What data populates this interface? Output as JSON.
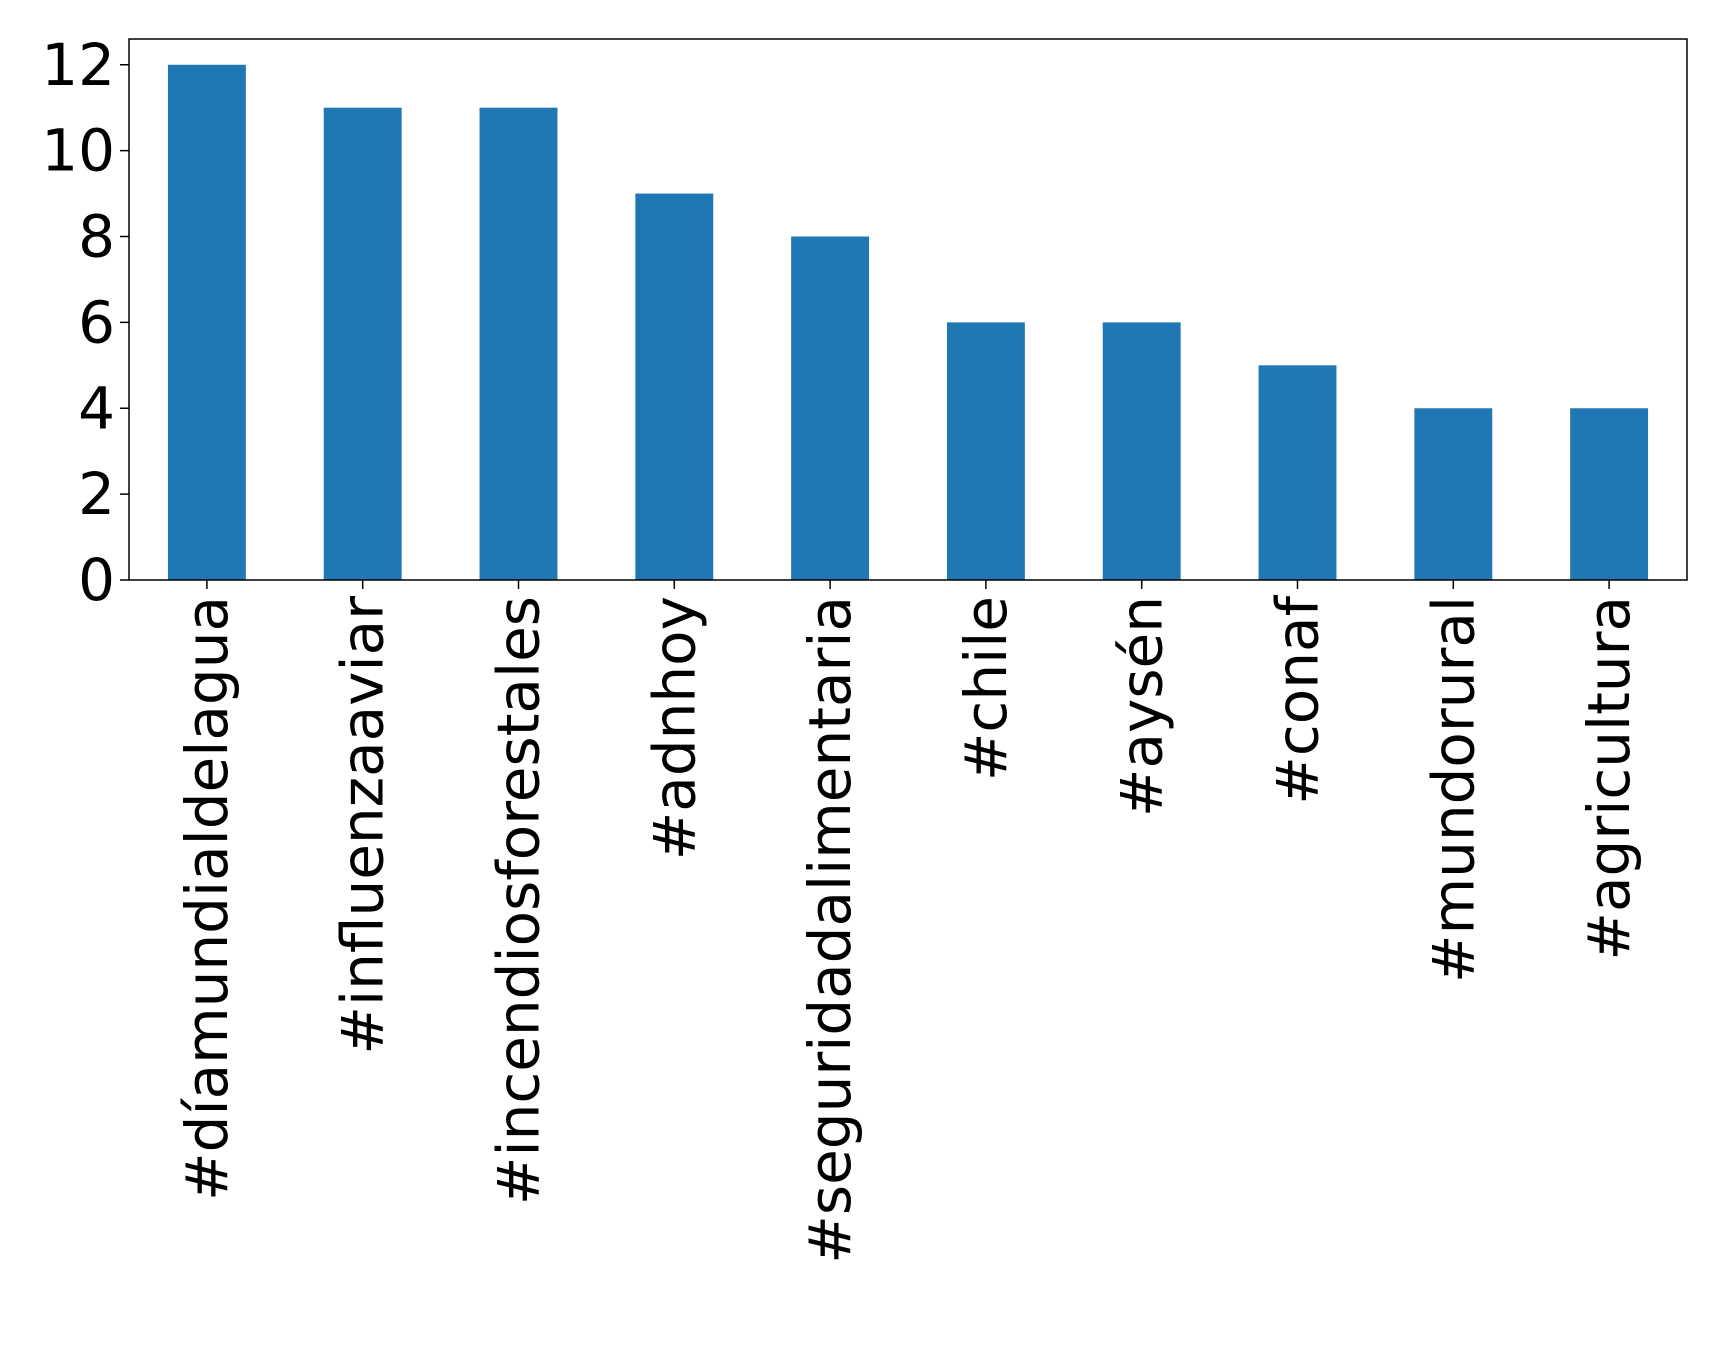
{
  "chart_data": {
    "type": "bar",
    "title": "",
    "xlabel": "",
    "ylabel": "",
    "categories": [
      "#díamundialdelagua",
      "#influenzaaviar",
      "#incendiosforestales",
      "#adnhoy",
      "#seguridadalimentaria",
      "#chile",
      "#aysén",
      "#conaf",
      "#mundorural",
      "#agricultura"
    ],
    "values": [
      12,
      11,
      11,
      9,
      8,
      6,
      6,
      5,
      4,
      4
    ],
    "ylim": [
      0,
      12.6
    ],
    "yticks": [
      0,
      2,
      4,
      6,
      8,
      10,
      12
    ],
    "grid": false,
    "legend": "none",
    "bar_color": "#1f77b4"
  }
}
